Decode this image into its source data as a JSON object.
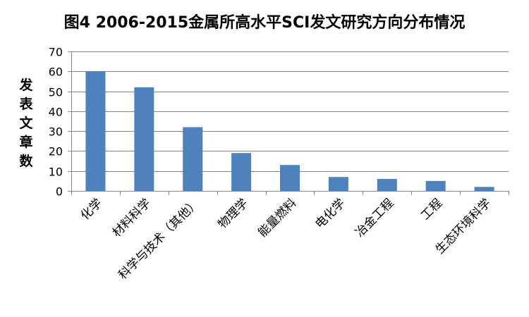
{
  "chart_data": {
    "type": "bar",
    "title": "图4 2006-2015金属所高水平SCI发文研究方向分布情况",
    "xlabel": "",
    "ylabel": "发表文章数",
    "categories": [
      "化学",
      "材料科学",
      "科学与技术（其他）",
      "物理学",
      "能量燃料",
      "电化学",
      "冶金工程",
      "工程",
      "生态环境科学"
    ],
    "values": [
      60,
      52,
      32,
      19,
      13,
      7,
      6,
      5,
      2
    ],
    "ylim": [
      0,
      70
    ],
    "yticks": [
      0,
      10,
      20,
      30,
      40,
      50,
      60,
      70
    ],
    "grid": true,
    "legend": "none",
    "bar_color": "#4f81bd",
    "grid_color": "#868686"
  }
}
